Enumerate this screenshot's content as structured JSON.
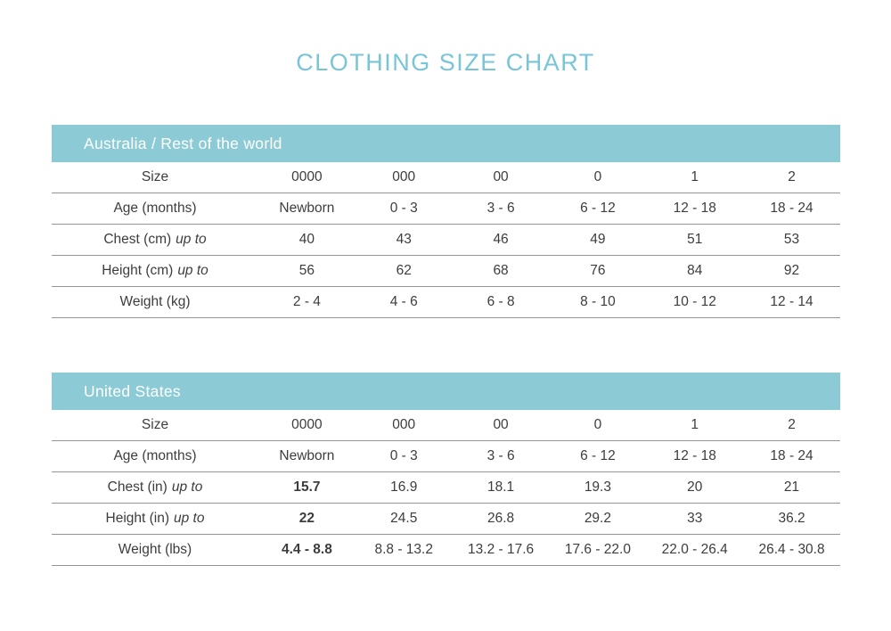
{
  "page": {
    "title": "CLOTHING SIZE CHART"
  },
  "colors": {
    "title_teal": "#79c5d8",
    "band_teal": "#8ccbd6",
    "band_text": "#ffffff",
    "body_text": "#3d3d3d",
    "divider_gray": "#949494"
  },
  "chart_data": {
    "type": "table",
    "title": "CLOTHING SIZE CHART"
  },
  "tables": [
    {
      "header": "Australia / Rest of the world",
      "rows": [
        {
          "label": "Size",
          "label_italic": "",
          "emphasize_first": false,
          "values": [
            "0000",
            "000",
            "00",
            "0",
            "1",
            "2"
          ]
        },
        {
          "label": "Age (months)",
          "label_italic": "",
          "emphasize_first": false,
          "values": [
            "Newborn",
            "0 - 3",
            "3 - 6",
            "6 - 12",
            "12 - 18",
            "18 - 24"
          ]
        },
        {
          "label": "Chest (cm)",
          "label_italic": "up to",
          "emphasize_first": false,
          "values": [
            "40",
            "43",
            "46",
            "49",
            "51",
            "53"
          ]
        },
        {
          "label": "Height (cm)",
          "label_italic": "up to",
          "emphasize_first": false,
          "values": [
            "56",
            "62",
            "68",
            "76",
            "84",
            "92"
          ]
        },
        {
          "label": "Weight (kg)",
          "label_italic": "",
          "emphasize_first": false,
          "values": [
            "2 - 4",
            "4 - 6",
            "6 - 8",
            "8 - 10",
            "10 - 12",
            "12 - 14"
          ]
        }
      ]
    },
    {
      "header": "United States",
      "rows": [
        {
          "label": "Size",
          "label_italic": "",
          "emphasize_first": false,
          "values": [
            "0000",
            "000",
            "00",
            "0",
            "1",
            "2"
          ]
        },
        {
          "label": "Age (months)",
          "label_italic": "",
          "emphasize_first": false,
          "values": [
            "Newborn",
            "0 - 3",
            "3 - 6",
            "6 - 12",
            "12 - 18",
            "18 - 24"
          ]
        },
        {
          "label": "Chest (in)",
          "label_italic": "up to",
          "emphasize_first": true,
          "values": [
            "15.7",
            "16.9",
            "18.1",
            "19.3",
            "20",
            "21"
          ]
        },
        {
          "label": "Height (in)",
          "label_italic": "up to",
          "emphasize_first": true,
          "values": [
            "22",
            "24.5",
            "26.8",
            "29.2",
            "33",
            "36.2"
          ]
        },
        {
          "label": "Weight (lbs)",
          "label_italic": "",
          "emphasize_first": true,
          "values": [
            "4.4 - 8.8",
            "8.8 - 13.2",
            "13.2 - 17.6",
            "17.6 - 22.0",
            "22.0 - 26.4",
            "26.4 - 30.8"
          ]
        }
      ]
    }
  ]
}
